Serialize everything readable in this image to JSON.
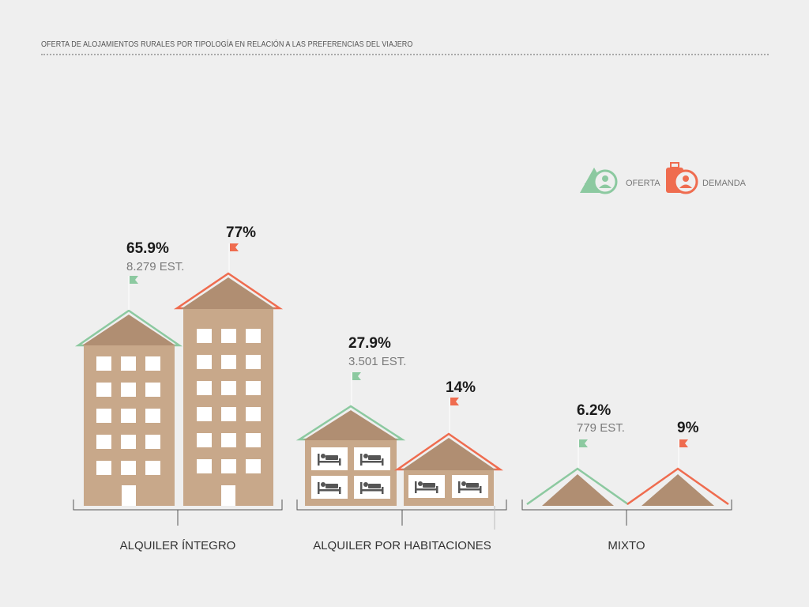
{
  "title": "OFERTA DE ALOJAMIENTOS RURALES POR TIPOLOGÍA EN RELACIÓN A LAS PREFERENCIAS DEL VIAJERO",
  "legend": {
    "oferta_label": "OFERTA",
    "demanda_label": "DEMANDA",
    "oferta_icon": "house-person-icon",
    "demanda_icon": "suitcase-person-icon"
  },
  "colors": {
    "background": "#efefef",
    "building": "#c8a88a",
    "roof": "#b08e72",
    "oferta": "#8cc9a0",
    "demanda": "#ef6c4f",
    "window": "#ffffff",
    "axis": "#555555"
  },
  "chart_data": {
    "type": "bar",
    "categories": [
      "ALQUILER ÍNTEGRO",
      "ALQUILER POR HABITACIONES",
      "MIXTO"
    ],
    "series": [
      {
        "name": "OFERTA",
        "values": [
          65.9,
          27.9,
          6.2
        ]
      },
      {
        "name": "DEMANDA",
        "values": [
          77,
          14,
          9
        ]
      }
    ],
    "labels": {
      "oferta": [
        "65.9%",
        "27.9%",
        "6.2%"
      ],
      "oferta_establishments": [
        "8.279 EST.",
        "3.501 EST.",
        "779 EST."
      ],
      "demanda": [
        "77%",
        "14%",
        "9%"
      ]
    },
    "unit": "%"
  }
}
